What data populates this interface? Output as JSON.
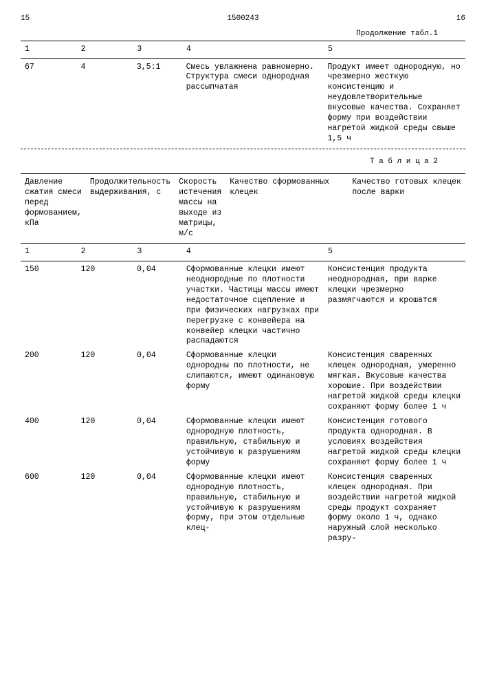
{
  "page_left": "15",
  "doc_number": "1500243",
  "page_right": "16",
  "table1_continuation": "Продолжение табл.1",
  "table2_caption": "Т а б л и ц а  2",
  "table1": {
    "nums": [
      "1",
      "2",
      "3",
      "4",
      "5"
    ],
    "rows": [
      {
        "c1": "67",
        "c2": "4",
        "c3": "3,5:1",
        "c4": "Смесь увлажнена равномерно. Структура смеси однородная рассыпчатая",
        "c5": "Продукт имеет однородную, но чрезмерно жесткую консистенцию и неудовлетворительные вкусовые качества. Сохраняет форму при воздействии нагретой жидкой среды свыше 1,5 ч"
      }
    ]
  },
  "table2": {
    "headers": [
      "Давление сжатия смеси перед формованием, кПа",
      "Продолжительность выдерживания, с",
      "Скорость истечения массы на выходе из матрицы, м/с",
      "Качество сформованных клецек",
      "Качество готовых клецек после варки"
    ],
    "nums": [
      "1",
      "2",
      "3",
      "4",
      "5"
    ],
    "rows": [
      {
        "c1": "150",
        "c2": "120",
        "c3": "0,04",
        "c4": "Сформованные клецки имеют неоднородные по плотности участки. Частицы массы имеют недостаточное сцепление и при физических нагрузках при перегрузке с конвейера на конвейер клецки частично распадаются",
        "c5": "Консистенция продукта неоднородная, при варке клецки чрезмерно размягчаются и крошатся"
      },
      {
        "c1": "200",
        "c2": "120",
        "c3": "0,04",
        "c4": "Сформованные клецки однородны по плотности, не слипаются, имеют одинаковую форму",
        "c5": "Консистенция сваренных клецек однородная, умеренно мягкая. Вкусовые качества хорошие. При воздействии нагретой жидкой среды клецки сохраняют форму более 1 ч"
      },
      {
        "c1": "400",
        "c2": "120",
        "c3": "0,04",
        "c4": "Сформованные клецки имеют однородную плотность, правильную, стабильную и устойчивую к разрушениям форму",
        "c5": "Консистенция готового продукта однородная. В условиях воздействия нагретой жидкой среды клецки сохраняют форму более 1 ч"
      },
      {
        "c1": "600",
        "c2": "120",
        "c3": "0,04",
        "c4": "Сформованные клецки имеют однородную плотность, правильную, стабильную и устойчивую к разрушениям форму, при этом отдельные клец-",
        "c5": "Консистенция сваренных клецек однородная. При воздействии нагретой жидкой среды продукт сохраняет форму около 1 ч, однако наружный слой несколько разру-"
      }
    ]
  }
}
